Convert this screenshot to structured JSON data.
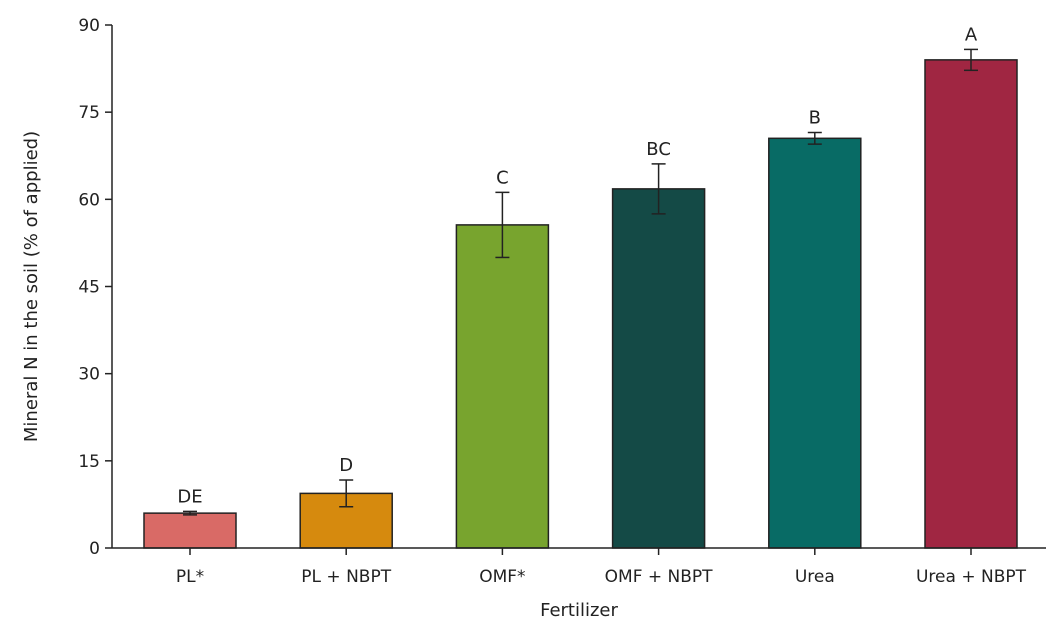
{
  "chart_data": {
    "type": "bar",
    "xlabel": "Fertilizer",
    "ylabel": "Mineral N in the soil (% of applied)",
    "ylim": [
      0,
      90
    ],
    "yticks": [
      "0",
      "15",
      "30",
      "45",
      "60",
      "75",
      "90"
    ],
    "categories": [
      "PL*",
      "PL + NBPT",
      "OMF*",
      "OMF + NBPT",
      "Urea",
      "Urea + NBPT"
    ],
    "values": [
      6.0,
      9.4,
      55.6,
      61.8,
      70.5,
      84.0
    ],
    "error": [
      0.3,
      2.3,
      5.6,
      4.3,
      1.0,
      1.8
    ],
    "group_labels": [
      "DE",
      "D",
      "C",
      "BC",
      "B",
      "A"
    ],
    "colors": [
      "#d96a66",
      "#d68a0e",
      "#78a42e",
      "#144a46",
      "#086b65",
      "#a02642"
    ],
    "grid": false,
    "legend": "none"
  }
}
